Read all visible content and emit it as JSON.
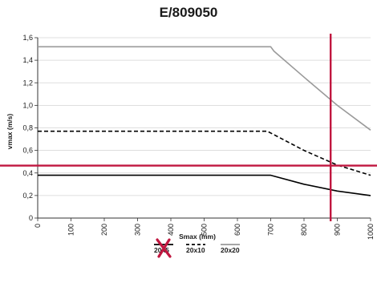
{
  "chart_data": {
    "type": "line",
    "title": "E/809050",
    "xlabel": "Smax (mm)",
    "ylabel": "vmax (m/s)",
    "xlim": [
      0,
      1000
    ],
    "ylim": [
      0,
      1.6
    ],
    "grid": "horizontal",
    "x_ticks": [
      "0",
      "100",
      "200",
      "300",
      "400",
      "500",
      "600",
      "700",
      "800",
      "900",
      "1000"
    ],
    "y_ticks": [
      "0",
      "0,2",
      "0,4",
      "0,6",
      "0,8",
      "1,0",
      "1,2",
      "1,4",
      "1,6"
    ],
    "legend_position": "bottom-center",
    "series": [
      {
        "name": "20x5",
        "style": "solid",
        "color": "#000000",
        "x": [
          0,
          100,
          200,
          300,
          400,
          500,
          600,
          700,
          800,
          900,
          1000
        ],
        "y": [
          0.38,
          0.38,
          0.38,
          0.38,
          0.38,
          0.38,
          0.38,
          0.38,
          0.3,
          0.24,
          0.2
        ]
      },
      {
        "name": "20x10",
        "style": "dashed",
        "color": "#000000",
        "x": [
          0,
          100,
          200,
          300,
          400,
          500,
          600,
          690,
          800,
          900,
          1000
        ],
        "y": [
          0.77,
          0.77,
          0.77,
          0.77,
          0.77,
          0.77,
          0.77,
          0.77,
          0.6,
          0.47,
          0.38
        ]
      },
      {
        "name": "20x20",
        "style": "solid",
        "color": "#9a9a9a",
        "x": [
          0,
          100,
          200,
          300,
          400,
          500,
          600,
          700,
          710,
          800,
          900,
          1000
        ],
        "y": [
          1.52,
          1.52,
          1.52,
          1.52,
          1.52,
          1.52,
          1.52,
          1.52,
          1.48,
          1.25,
          1.0,
          0.78
        ]
      }
    ],
    "reference_lines": [
      {
        "orientation": "vertical",
        "x": 880,
        "color": "#c0163f"
      },
      {
        "orientation": "horizontal",
        "y": 0.465,
        "color": "#c0163f"
      }
    ],
    "legend_cross_mark": {
      "series": "20x5",
      "color": "#c0163f"
    }
  }
}
